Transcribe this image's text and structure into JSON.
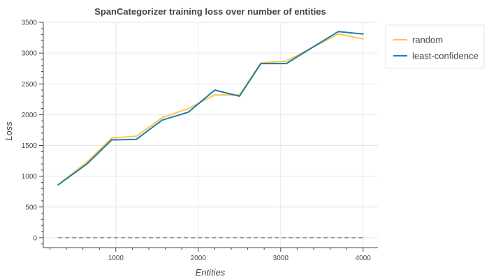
{
  "chart_data": {
    "type": "line",
    "title": "SpanCategorizer training loss over number of entities",
    "xlabel": "Entities",
    "ylabel": "Loss",
    "xlim": [
      120,
      4180
    ],
    "ylim": [
      -160,
      3500
    ],
    "x_ticks": [
      1000,
      2000,
      3000,
      4000
    ],
    "y_ticks": [
      0,
      500,
      1000,
      1500,
      2000,
      2500,
      3000,
      3500
    ],
    "grid": true,
    "legend_position": "right",
    "series": [
      {
        "name": "random",
        "color": "#fdc44b",
        "x": [
          300,
          650,
          950,
          1250,
          1560,
          1880,
          2200,
          2500,
          2760,
          3070,
          3370,
          3700,
          4000
        ],
        "y": [
          860,
          1230,
          1620,
          1650,
          1950,
          2100,
          2320,
          2320,
          2840,
          2870,
          3080,
          3310,
          3230
        ]
      },
      {
        "name": "least-confidence",
        "color": "#1a7ea6",
        "x": [
          300,
          650,
          950,
          1250,
          1560,
          1880,
          2200,
          2500,
          2760,
          3070,
          3370,
          3700,
          4000
        ],
        "y": [
          860,
          1200,
          1590,
          1600,
          1910,
          2040,
          2400,
          2300,
          2830,
          2830,
          3080,
          3350,
          3310
        ]
      }
    ],
    "baseline": {
      "y": 0,
      "style": "dashed",
      "color": "#555555"
    }
  }
}
